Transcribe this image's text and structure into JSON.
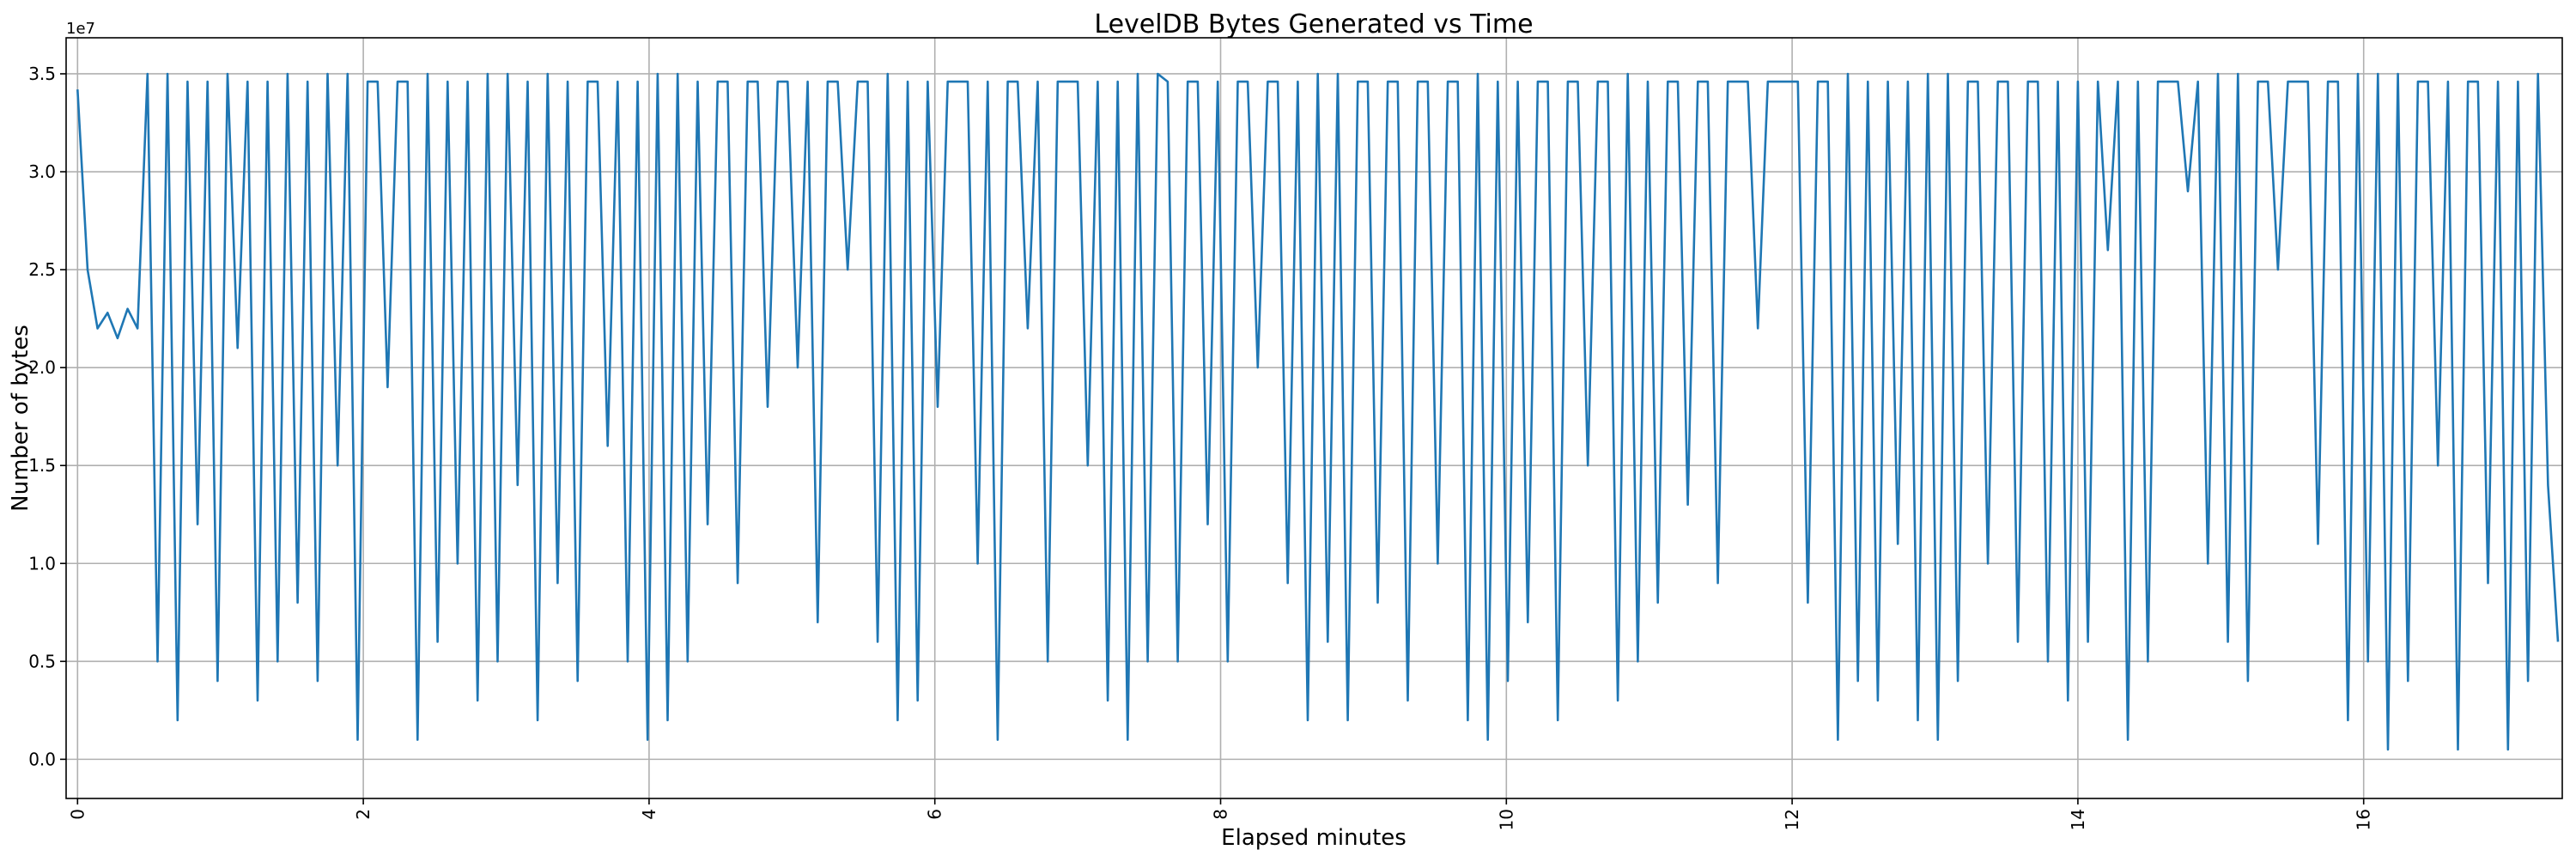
{
  "chart_data": {
    "type": "line",
    "title": "LevelDB Bytes Generated vs Time",
    "xlabel": "Elapsed minutes",
    "ylabel": "Number of bytes",
    "y_offset_label": "1e7",
    "y_multiplier": 10000000,
    "xlim": [
      -0.08,
      17.39
    ],
    "ylim": [
      -0.2,
      3.684
    ],
    "x_ticks": [
      0,
      2,
      4,
      6,
      8,
      10,
      12,
      14,
      16
    ],
    "x_tick_labels": [
      "0",
      "2",
      "4",
      "6",
      "8",
      "10",
      "12",
      "14",
      "16"
    ],
    "y_ticks": [
      0,
      0.5,
      1.0,
      1.5,
      2.0,
      2.5,
      3.0,
      3.5
    ],
    "y_tick_labels": [
      "0.0",
      "0.5",
      "1.0",
      "1.5",
      "2.0",
      "2.5",
      "3.0",
      "3.5"
    ],
    "grid": true,
    "color": "#1f77b4",
    "series": [
      {
        "name": "bytes",
        "x_start": 0,
        "x_step": 0.07,
        "values": [
          3.42,
          2.5,
          2.2,
          2.28,
          2.15,
          2.3,
          2.2,
          3.5,
          0.5,
          3.5,
          0.2,
          3.46,
          1.2,
          3.46,
          0.4,
          3.5,
          2.1,
          3.46,
          0.3,
          3.46,
          0.5,
          3.5,
          0.8,
          3.46,
          0.4,
          3.5,
          1.5,
          3.5,
          0.1,
          3.46,
          3.46,
          1.9,
          3.46,
          3.46,
          0.1,
          3.5,
          0.6,
          3.46,
          1.0,
          3.46,
          0.3,
          3.5,
          0.5,
          3.5,
          1.4,
          3.46,
          0.2,
          3.5,
          0.9,
          3.46,
          0.4,
          3.46,
          3.46,
          1.6,
          3.46,
          0.5,
          3.46,
          0.1,
          3.5,
          0.2,
          3.5,
          0.5,
          3.46,
          1.2,
          3.46,
          3.46,
          0.9,
          3.46,
          3.46,
          1.8,
          3.46,
          3.46,
          2.0,
          3.46,
          0.7,
          3.46,
          3.46,
          2.5,
          3.46,
          3.46,
          0.6,
          3.5,
          0.2,
          3.46,
          0.3,
          3.46,
          1.8,
          3.46,
          3.46,
          3.46,
          1.0,
          3.46,
          0.1,
          3.46,
          3.46,
          2.2,
          3.46,
          0.5,
          3.46,
          3.46,
          3.46,
          1.5,
          3.46,
          0.3,
          3.46,
          0.1,
          3.5,
          0.5,
          3.5,
          3.46,
          0.5,
          3.46,
          3.46,
          1.2,
          3.46,
          0.5,
          3.46,
          3.46,
          2.0,
          3.46,
          3.46,
          0.9,
          3.46,
          0.2,
          3.5,
          0.6,
          3.5,
          0.2,
          3.46,
          3.46,
          0.8,
          3.46,
          3.46,
          0.3,
          3.46,
          3.46,
          1.0,
          3.46,
          3.46,
          0.2,
          3.5,
          0.1,
          3.46,
          0.4,
          3.46,
          0.7,
          3.46,
          3.46,
          0.2,
          3.46,
          3.46,
          1.5,
          3.46,
          3.46,
          0.3,
          3.5,
          0.5,
          3.46,
          0.8,
          3.46,
          3.46,
          1.3,
          3.46,
          3.46,
          0.9,
          3.46,
          3.46,
          3.46,
          2.2,
          3.46,
          3.46,
          3.46,
          3.46,
          0.8,
          3.46,
          3.46,
          0.1,
          3.5,
          0.4,
          3.46,
          0.3,
          3.46,
          1.1,
          3.46,
          0.2,
          3.5,
          0.1,
          3.5,
          0.4,
          3.46,
          3.46,
          1.0,
          3.46,
          3.46,
          0.6,
          3.46,
          3.46,
          0.5,
          3.46,
          0.3,
          3.46,
          0.6,
          3.46,
          2.6,
          3.46,
          0.1,
          3.46,
          0.5,
          3.46,
          3.46,
          3.46,
          2.9,
          3.46,
          1.0,
          3.5,
          0.6,
          3.5,
          0.4,
          3.46,
          3.46,
          2.5,
          3.46,
          3.46,
          3.46,
          1.1,
          3.46,
          3.46,
          0.2,
          3.5,
          0.5,
          3.5,
          0.05,
          3.5,
          0.4,
          3.46,
          3.46,
          1.5,
          3.46,
          0.05,
          3.46,
          3.46,
          0.9,
          3.46,
          0.05,
          3.46,
          0.4,
          3.5,
          1.4,
          0.6
        ]
      }
    ]
  }
}
